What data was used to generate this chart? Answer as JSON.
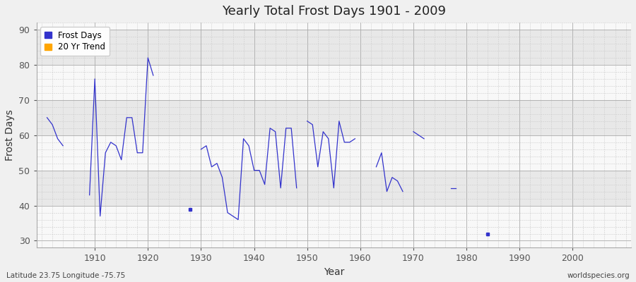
{
  "title": "Yearly Total Frost Days 1901 - 2009",
  "xlabel": "Year",
  "ylabel": "Frost Days",
  "subtitle": "Latitude 23.75 Longitude -75.75",
  "watermark": "worldspecies.org",
  "ylim": [
    28,
    92
  ],
  "yticks": [
    30,
    40,
    50,
    60,
    70,
    80,
    90
  ],
  "xlim": [
    1899,
    2011
  ],
  "xticks": [
    1910,
    1920,
    1930,
    1940,
    1950,
    1960,
    1970,
    1980,
    1990,
    2000
  ],
  "bg_color": "#f0f0f0",
  "plot_bg_color": "#f8f8f8",
  "line_color": "#3333cc",
  "marker_color": "#3333cc",
  "trend_color": "#ffa500",
  "band_color": "#e8e8e8",
  "years": [
    1901,
    1902,
    1903,
    1904,
    1905,
    1906,
    1907,
    1908,
    1909,
    1910,
    1911,
    1912,
    1913,
    1914,
    1915,
    1916,
    1917,
    1918,
    1919,
    1920,
    1921,
    1922,
    1923,
    1924,
    1925,
    1926,
    1927,
    1928,
    1929,
    1930,
    1931,
    1932,
    1933,
    1934,
    1935,
    1936,
    1937,
    1938,
    1939,
    1940,
    1941,
    1942,
    1943,
    1944,
    1945,
    1946,
    1947,
    1948,
    1949,
    1950,
    1951,
    1952,
    1953,
    1954,
    1955,
    1956,
    1957,
    1958,
    1959,
    1960,
    1961,
    1962,
    1963,
    1964,
    1965,
    1966,
    1967,
    1968,
    1969,
    1970,
    1971,
    1972,
    1973,
    1974,
    1975,
    1976,
    1977,
    1978,
    1979,
    1980,
    1981,
    1982,
    1983,
    1984,
    1985,
    1986,
    1987,
    1988,
    1989,
    1990,
    1991,
    1992,
    1993,
    1994,
    1995,
    1996,
    1997,
    1998,
    1999,
    2000,
    2001,
    2002,
    2003,
    2004,
    2005,
    2006,
    2007,
    2008,
    2009
  ],
  "values": [
    65,
    63,
    59,
    57,
    null,
    null,
    null,
    null,
    43,
    76,
    37,
    55,
    58,
    57,
    53,
    65,
    65,
    55,
    55,
    82,
    77,
    null,
    null,
    null,
    null,
    null,
    null,
    39,
    null,
    56,
    57,
    51,
    52,
    48,
    38,
    37,
    36,
    59,
    57,
    50,
    50,
    46,
    62,
    61,
    45,
    62,
    62,
    45,
    null,
    64,
    63,
    51,
    61,
    59,
    45,
    64,
    58,
    58,
    59,
    null,
    null,
    null,
    51,
    55,
    44,
    48,
    47,
    44,
    null,
    61,
    60,
    59,
    null,
    null,
    null,
    null,
    45,
    45,
    null,
    null,
    null,
    null,
    null,
    32,
    null,
    null,
    null,
    null,
    null,
    null,
    null,
    null,
    null,
    null,
    null,
    null,
    null,
    null,
    null,
    null,
    null,
    null,
    null,
    null,
    null,
    null,
    null,
    null,
    null
  ]
}
